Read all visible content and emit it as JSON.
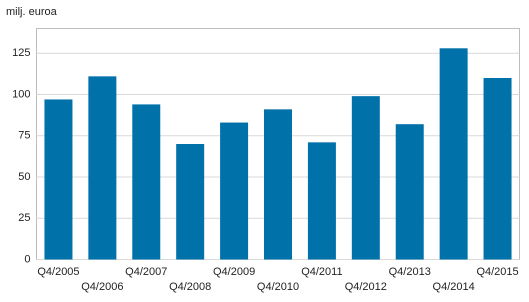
{
  "chart_data": {
    "type": "bar",
    "y_label": "milj. euroa",
    "categories": [
      "Q4/2005",
      "Q4/2006",
      "Q4/2007",
      "Q4/2008",
      "Q4/2009",
      "Q4/2010",
      "Q4/2011",
      "Q4/2012",
      "Q4/2013",
      "Q4/2014",
      "Q4/2015"
    ],
    "values": [
      97,
      111,
      94,
      70,
      83,
      91,
      71,
      99,
      82,
      128,
      110
    ],
    "color": "#0071a9",
    "ylim": [
      0,
      140
    ],
    "yticks": [
      0,
      25,
      50,
      75,
      100,
      125
    ],
    "grid": true
  }
}
